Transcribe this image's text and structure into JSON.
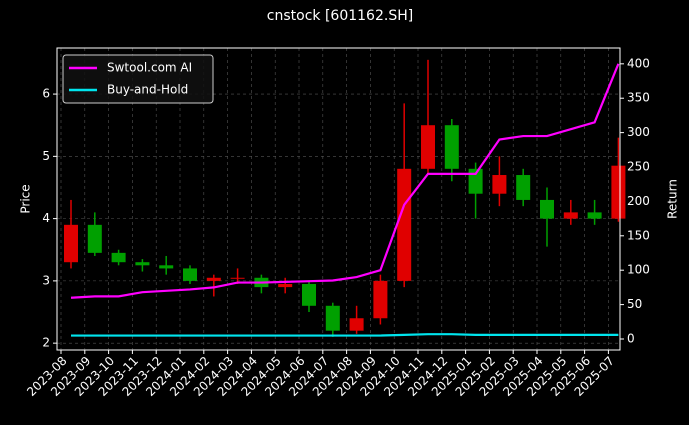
{
  "chart_data": {
    "type": "candlestick",
    "title": "cnstock [601162.SH]",
    "ylabel": "Price",
    "y2label": "Return",
    "x": [
      "2023-08",
      "2023-09",
      "2023-10",
      "2023-11",
      "2023-12",
      "2024-01",
      "2024-02",
      "2024-03",
      "2024-04",
      "2024-05",
      "2024-06",
      "2024-07",
      "2024-08",
      "2024-09",
      "2024-10",
      "2024-11",
      "2024-12",
      "2025-01",
      "2025-02",
      "2025-03",
      "2025-04",
      "2025-05",
      "2025-06",
      "2025-07"
    ],
    "open": [
      3.3,
      3.9,
      3.45,
      3.3,
      3.25,
      3.2,
      3.0,
      3.05,
      3.05,
      2.9,
      2.95,
      2.6,
      2.2,
      2.4,
      3.0,
      4.8,
      5.5,
      4.8,
      4.4,
      4.7,
      4.3,
      4.0,
      4.1,
      4.0
    ],
    "high": [
      4.3,
      4.1,
      3.5,
      3.35,
      3.4,
      3.25,
      3.1,
      3.2,
      3.1,
      3.05,
      3.0,
      2.65,
      2.6,
      3.1,
      5.85,
      6.55,
      5.6,
      4.9,
      5.0,
      4.8,
      4.5,
      4.3,
      4.3,
      5.3
    ],
    "low": [
      3.2,
      3.4,
      3.25,
      3.15,
      3.1,
      2.95,
      2.75,
      2.95,
      2.8,
      2.8,
      2.5,
      2.1,
      2.15,
      2.3,
      2.9,
      4.7,
      4.6,
      4.0,
      4.2,
      4.2,
      3.55,
      3.9,
      3.9,
      3.95
    ],
    "close": [
      3.9,
      3.45,
      3.3,
      3.25,
      3.2,
      3.0,
      3.05,
      3.05,
      2.9,
      2.95,
      2.6,
      2.2,
      2.4,
      3.0,
      4.8,
      5.5,
      4.8,
      4.4,
      4.7,
      4.3,
      4.0,
      4.1,
      4.0,
      4.85
    ],
    "up_color": "#e00000",
    "down_color": "#00a000",
    "series": [
      {
        "name": "Swtool.com AI",
        "color": "#ff00ff",
        "axis": "y2",
        "values": [
          60,
          62,
          62,
          68,
          70,
          72,
          75,
          82,
          82,
          83,
          84,
          85,
          90,
          100,
          195,
          240,
          240,
          240,
          290,
          295,
          295,
          305,
          315,
          400
        ]
      },
      {
        "name": "Buy-and-Hold",
        "color": "#00e5ee",
        "axis": "y2",
        "values": [
          5,
          5,
          5,
          5,
          5,
          5,
          5,
          5,
          5,
          5,
          5,
          5,
          5,
          5,
          6,
          7,
          7,
          6,
          6,
          6,
          6,
          6,
          6,
          6
        ]
      }
    ],
    "ylim": [
      1.89,
      6.74
    ],
    "yticks": [
      2,
      3,
      4,
      5,
      6
    ],
    "y2lim": [
      -16,
      423
    ],
    "y2ticks": [
      0,
      50,
      100,
      150,
      200,
      250,
      300,
      350,
      400
    ],
    "grid": true,
    "legend": "upper left"
  }
}
